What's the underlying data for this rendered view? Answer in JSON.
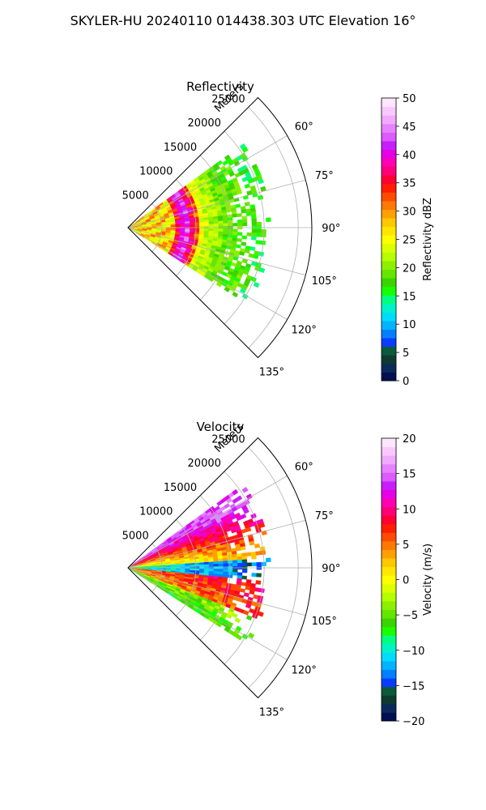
{
  "figure": {
    "title": "SKYLER-HU  20240110  014438.303 UTC Elevation 16°"
  },
  "chart_data": [
    {
      "type": "polar-sector",
      "title": "Reflectivity",
      "radial_axis_label": "Meters",
      "range_ticks": [
        5000,
        10000,
        15000,
        20000,
        25000
      ],
      "range_tick_labels": [
        "5000",
        "10000",
        "15000",
        "20000",
        "25000"
      ],
      "azimuth_ticks": [
        60,
        75,
        90,
        105,
        120,
        135
      ],
      "azimuth_tick_labels": [
        "60°",
        "75°",
        "90°",
        "105°",
        "120°",
        "135°"
      ],
      "azimuth_range": [
        45,
        135
      ],
      "max_range_m": 27000,
      "grid": true,
      "colorbar": {
        "label": "Reflectivity dBZ",
        "range": [
          0,
          50
        ],
        "ticks": [
          0,
          5,
          10,
          15,
          20,
          25,
          30,
          35,
          40,
          45,
          50
        ],
        "tick_labels": [
          "0",
          "5",
          "10",
          "15",
          "20",
          "25",
          "30",
          "35",
          "40",
          "45",
          "50"
        ],
        "colors": [
          "#001050",
          "#0b2a5a",
          "#103a30",
          "#0b5a3a",
          "#0a3cff",
          "#0080ff",
          "#00b4ff",
          "#00dcff",
          "#00f2c8",
          "#00ff80",
          "#19ff00",
          "#3cd400",
          "#64e600",
          "#8cf000",
          "#b4ff00",
          "#dcff00",
          "#ffff00",
          "#ffe600",
          "#ffc800",
          "#ffa000",
          "#ff7800",
          "#ff4b00",
          "#ff1e00",
          "#ff0032",
          "#ff0078",
          "#ff00b4",
          "#e600e6",
          "#c81eff",
          "#dc5aff",
          "#e682ff",
          "#f0aaff",
          "#f8c8ff",
          "#ffe6ff"
        ]
      },
      "echo_range_m": [
        0,
        21000
      ],
      "echo_azimuth_range": [
        54,
        122
      ]
    },
    {
      "type": "polar-sector",
      "title": "Velocity",
      "radial_axis_label": "Meters",
      "range_ticks": [
        5000,
        10000,
        15000,
        20000,
        25000
      ],
      "range_tick_labels": [
        "5000",
        "10000",
        "15000",
        "20000",
        "25000"
      ],
      "azimuth_ticks": [
        60,
        75,
        90,
        105,
        120,
        135
      ],
      "azimuth_tick_labels": [
        "60°",
        "75°",
        "90°",
        "105°",
        "120°",
        "135°"
      ],
      "azimuth_range": [
        45,
        135
      ],
      "max_range_m": 27000,
      "grid": true,
      "colorbar": {
        "label": "Velocity (m/s)",
        "range": [
          -20,
          20
        ],
        "ticks": [
          -20,
          -15,
          -10,
          -5,
          0,
          5,
          10,
          15,
          20
        ],
        "tick_labels": [
          "−20",
          "−15",
          "−10",
          "−5",
          "0",
          "5",
          "10",
          "15",
          "20"
        ],
        "colors": [
          "#001050",
          "#0b2a5a",
          "#103a30",
          "#0b5a3a",
          "#0a3cff",
          "#0080ff",
          "#00b4ff",
          "#00dcff",
          "#00f2c8",
          "#00ff80",
          "#19ff00",
          "#3cd400",
          "#64e600",
          "#8cf000",
          "#b4ff00",
          "#dcff00",
          "#ffff00",
          "#ffe600",
          "#ffc800",
          "#ffa000",
          "#ff7800",
          "#ff4b00",
          "#ff1e00",
          "#ff0032",
          "#ff0078",
          "#ff00b4",
          "#e600e6",
          "#c81eff",
          "#dc5aff",
          "#e682ff",
          "#f0aaff",
          "#f8c8ff",
          "#ffe6ff"
        ]
      },
      "echo_range_m": [
        0,
        21000
      ],
      "echo_azimuth_range": [
        54,
        122
      ]
    }
  ]
}
